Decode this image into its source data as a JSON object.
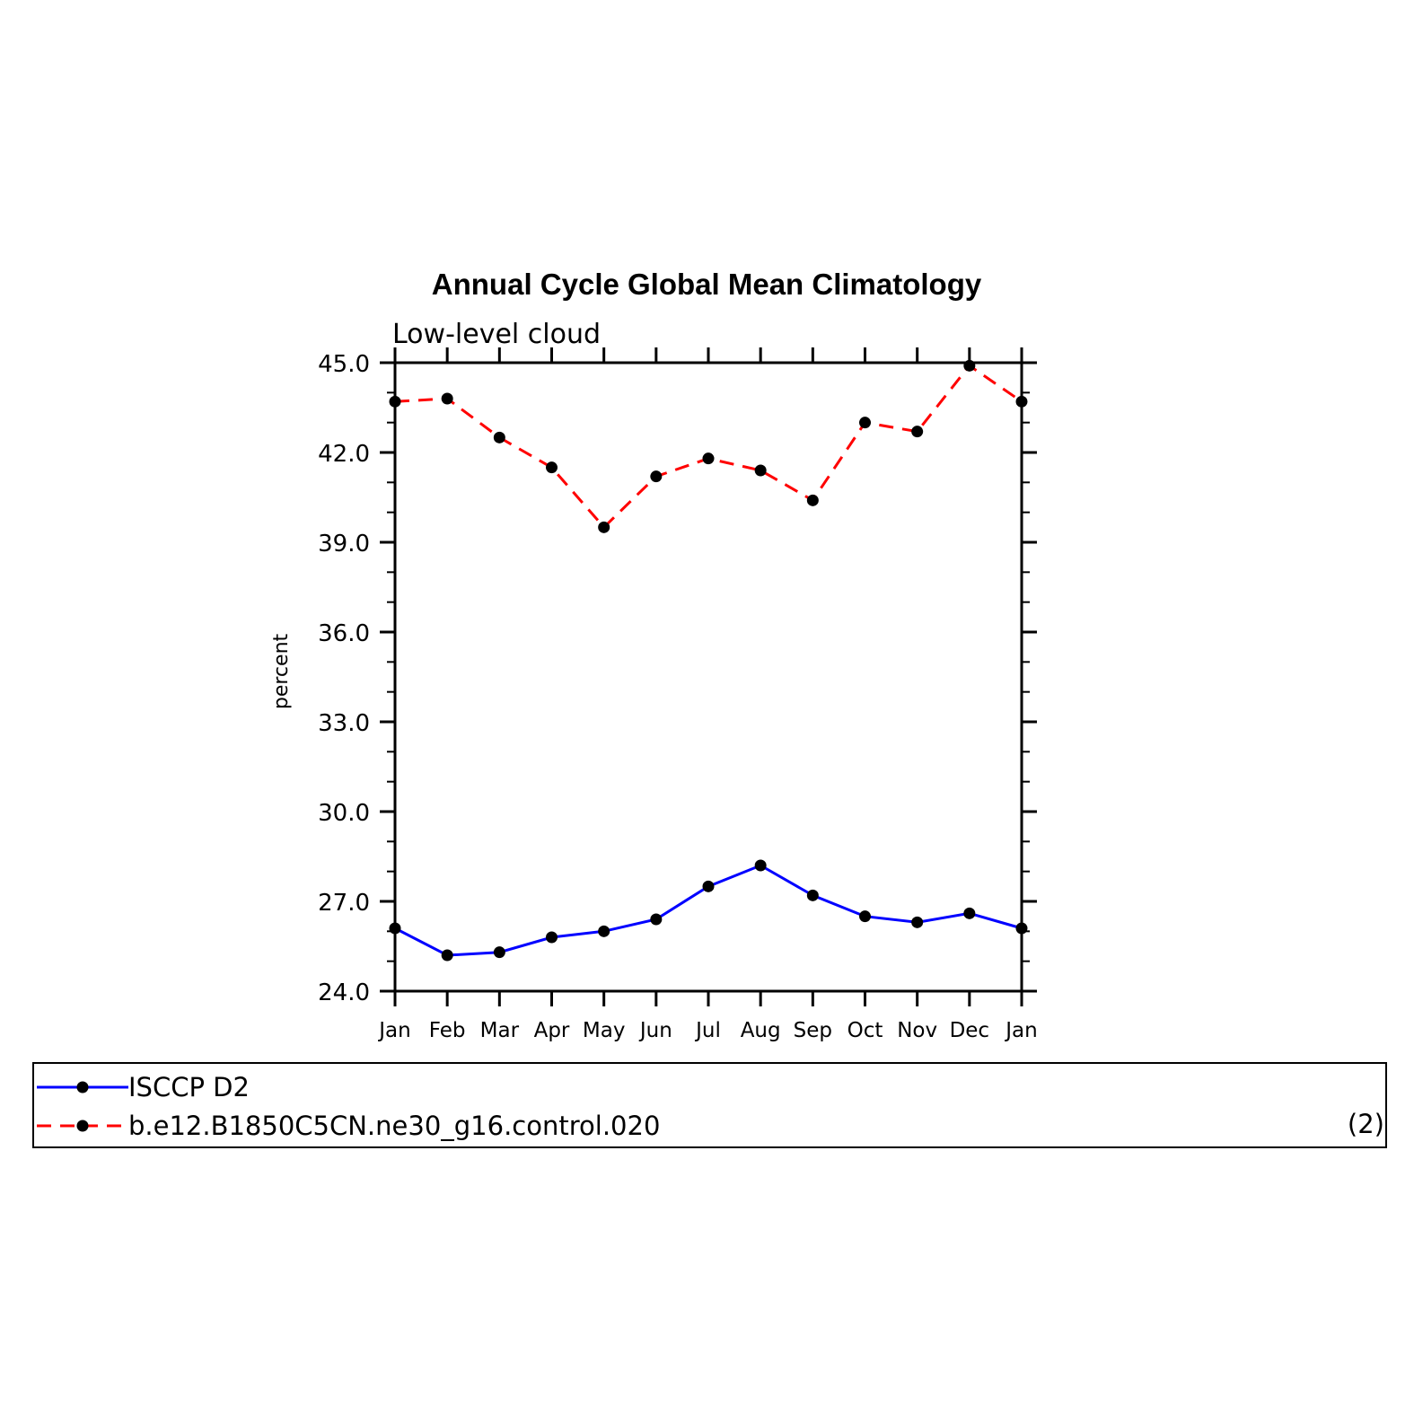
{
  "chart_data": {
    "type": "line",
    "title": "Annual Cycle Global Mean Climatology",
    "subtitle": "Low-level cloud",
    "xlabel": "",
    "ylabel": "percent",
    "ylim": [
      24.0,
      45.0
    ],
    "yticks": [
      "24.0",
      "27.0",
      "30.0",
      "33.0",
      "36.0",
      "39.0",
      "42.0",
      "45.0"
    ],
    "categories": [
      "Jan",
      "Feb",
      "Mar",
      "Apr",
      "May",
      "Jun",
      "Jul",
      "Aug",
      "Sep",
      "Oct",
      "Nov",
      "Dec",
      "Jan"
    ],
    "series": [
      {
        "name": "ISCCP D2",
        "color": "#0000ff",
        "style": "solid",
        "values": [
          26.1,
          25.2,
          25.3,
          25.8,
          26.0,
          26.4,
          27.5,
          28.2,
          27.2,
          26.5,
          26.3,
          26.6,
          26.1
        ]
      },
      {
        "name": "b.e12.B1850C5CN.ne30_g16.control.020",
        "color": "#ff0000",
        "style": "dashed",
        "values": [
          43.7,
          43.8,
          42.5,
          41.5,
          39.5,
          41.2,
          41.8,
          41.4,
          40.4,
          43.0,
          42.7,
          44.9,
          43.7
        ]
      }
    ],
    "legend": {
      "placement": "bottom",
      "note": "(2)"
    },
    "grid": false
  }
}
